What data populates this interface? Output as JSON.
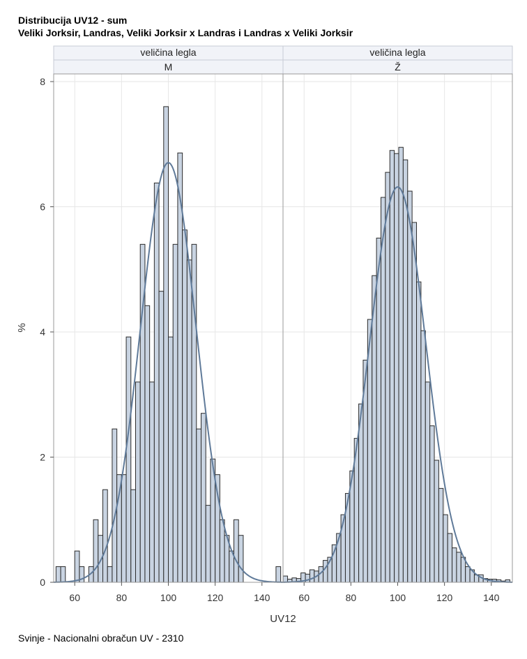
{
  "title": "Distribucija UV12 - sum",
  "subtitle": "Veliki Jorksir, Landras, Veliki Jorksir x Landras i Landras x Veliki Jorksir",
  "footnote": "Svinje - Nacionalni obračun UV - 2310",
  "chart_data": {
    "type": "histogram",
    "xlabel": "UV12",
    "ylabel": "%",
    "xlim": [
      51,
      149
    ],
    "ylim": [
      0,
      8
    ],
    "xticks": [
      60,
      80,
      100,
      120,
      140
    ],
    "yticks": [
      0,
      2,
      4,
      6,
      8
    ],
    "grid": true,
    "colors": {
      "bar_fill": "#c9d4e2",
      "bar_stroke": "#2b2b2b",
      "curve": "#5f7a99",
      "header_fill": "#f1f3f8"
    },
    "panels": [
      {
        "header_var": "veličina legla",
        "header_value": "M",
        "bin_width": 2,
        "bins": [
          {
            "x": 53,
            "y": 0.25
          },
          {
            "x": 55,
            "y": 0.25
          },
          {
            "x": 61,
            "y": 0.5
          },
          {
            "x": 63,
            "y": 0.25
          },
          {
            "x": 67,
            "y": 0.25
          },
          {
            "x": 69,
            "y": 1.0
          },
          {
            "x": 71,
            "y": 0.75
          },
          {
            "x": 73,
            "y": 1.48
          },
          {
            "x": 75,
            "y": 0.25
          },
          {
            "x": 77,
            "y": 2.45
          },
          {
            "x": 79,
            "y": 1.72
          },
          {
            "x": 81,
            "y": 1.72
          },
          {
            "x": 83,
            "y": 3.92
          },
          {
            "x": 85,
            "y": 1.48
          },
          {
            "x": 87,
            "y": 3.2
          },
          {
            "x": 89,
            "y": 5.4
          },
          {
            "x": 91,
            "y": 4.42
          },
          {
            "x": 93,
            "y": 3.2
          },
          {
            "x": 95,
            "y": 6.38
          },
          {
            "x": 97,
            "y": 4.65
          },
          {
            "x": 99,
            "y": 7.6
          },
          {
            "x": 101,
            "y": 3.92
          },
          {
            "x": 103,
            "y": 5.4
          },
          {
            "x": 105,
            "y": 6.86
          },
          {
            "x": 107,
            "y": 5.63
          },
          {
            "x": 109,
            "y": 5.15
          },
          {
            "x": 111,
            "y": 5.4
          },
          {
            "x": 113,
            "y": 2.45
          },
          {
            "x": 115,
            "y": 2.7
          },
          {
            "x": 117,
            "y": 1.23
          },
          {
            "x": 119,
            "y": 1.97
          },
          {
            "x": 121,
            "y": 1.72
          },
          {
            "x": 123,
            "y": 1.0
          },
          {
            "x": 125,
            "y": 0.75
          },
          {
            "x": 127,
            "y": 0.5
          },
          {
            "x": 129,
            "y": 1.0
          },
          {
            "x": 131,
            "y": 0.75
          },
          {
            "x": 147,
            "y": 0.25
          }
        ],
        "normal": {
          "mean": 100,
          "sd": 11.9
        }
      },
      {
        "header_var": "veličina legla",
        "header_value": "Ž",
        "bin_width": 1.9,
        "bins": [
          {
            "x": 52.0,
            "y": 0.1
          },
          {
            "x": 53.9,
            "y": 0.05
          },
          {
            "x": 55.8,
            "y": 0.07
          },
          {
            "x": 57.7,
            "y": 0.06
          },
          {
            "x": 59.6,
            "y": 0.15
          },
          {
            "x": 61.5,
            "y": 0.13
          },
          {
            "x": 63.4,
            "y": 0.2
          },
          {
            "x": 65.3,
            "y": 0.18
          },
          {
            "x": 67.2,
            "y": 0.25
          },
          {
            "x": 69.1,
            "y": 0.35
          },
          {
            "x": 71.0,
            "y": 0.4
          },
          {
            "x": 72.9,
            "y": 0.6
          },
          {
            "x": 74.8,
            "y": 0.78
          },
          {
            "x": 76.7,
            "y": 1.08
          },
          {
            "x": 78.6,
            "y": 1.42
          },
          {
            "x": 80.5,
            "y": 1.78
          },
          {
            "x": 82.4,
            "y": 2.3
          },
          {
            "x": 84.3,
            "y": 2.85
          },
          {
            "x": 86.2,
            "y": 3.55
          },
          {
            "x": 88.1,
            "y": 4.2
          },
          {
            "x": 90.0,
            "y": 4.9
          },
          {
            "x": 91.9,
            "y": 5.5
          },
          {
            "x": 93.8,
            "y": 6.15
          },
          {
            "x": 95.7,
            "y": 6.55
          },
          {
            "x": 97.6,
            "y": 6.9
          },
          {
            "x": 99.5,
            "y": 6.85
          },
          {
            "x": 101.4,
            "y": 6.95
          },
          {
            "x": 103.3,
            "y": 6.75
          },
          {
            "x": 105.2,
            "y": 6.25
          },
          {
            "x": 107.1,
            "y": 5.75
          },
          {
            "x": 109.0,
            "y": 4.8
          },
          {
            "x": 110.9,
            "y": 4.02
          },
          {
            "x": 112.8,
            "y": 3.2
          },
          {
            "x": 114.7,
            "y": 2.5
          },
          {
            "x": 116.6,
            "y": 1.95
          },
          {
            "x": 118.5,
            "y": 1.5
          },
          {
            "x": 120.4,
            "y": 1.08
          },
          {
            "x": 122.3,
            "y": 0.78
          },
          {
            "x": 124.2,
            "y": 0.55
          },
          {
            "x": 126.1,
            "y": 0.48
          },
          {
            "x": 128.0,
            "y": 0.4
          },
          {
            "x": 129.9,
            "y": 0.25
          },
          {
            "x": 131.8,
            "y": 0.2
          },
          {
            "x": 133.7,
            "y": 0.12
          },
          {
            "x": 135.6,
            "y": 0.12
          },
          {
            "x": 137.5,
            "y": 0.06
          },
          {
            "x": 139.4,
            "y": 0.05
          },
          {
            "x": 141.3,
            "y": 0.05
          },
          {
            "x": 143.2,
            "y": 0.04
          },
          {
            "x": 145.1,
            "y": 0.02
          },
          {
            "x": 147.0,
            "y": 0.04
          }
        ],
        "normal": {
          "mean": 100,
          "sd": 12.0
        }
      }
    ]
  }
}
